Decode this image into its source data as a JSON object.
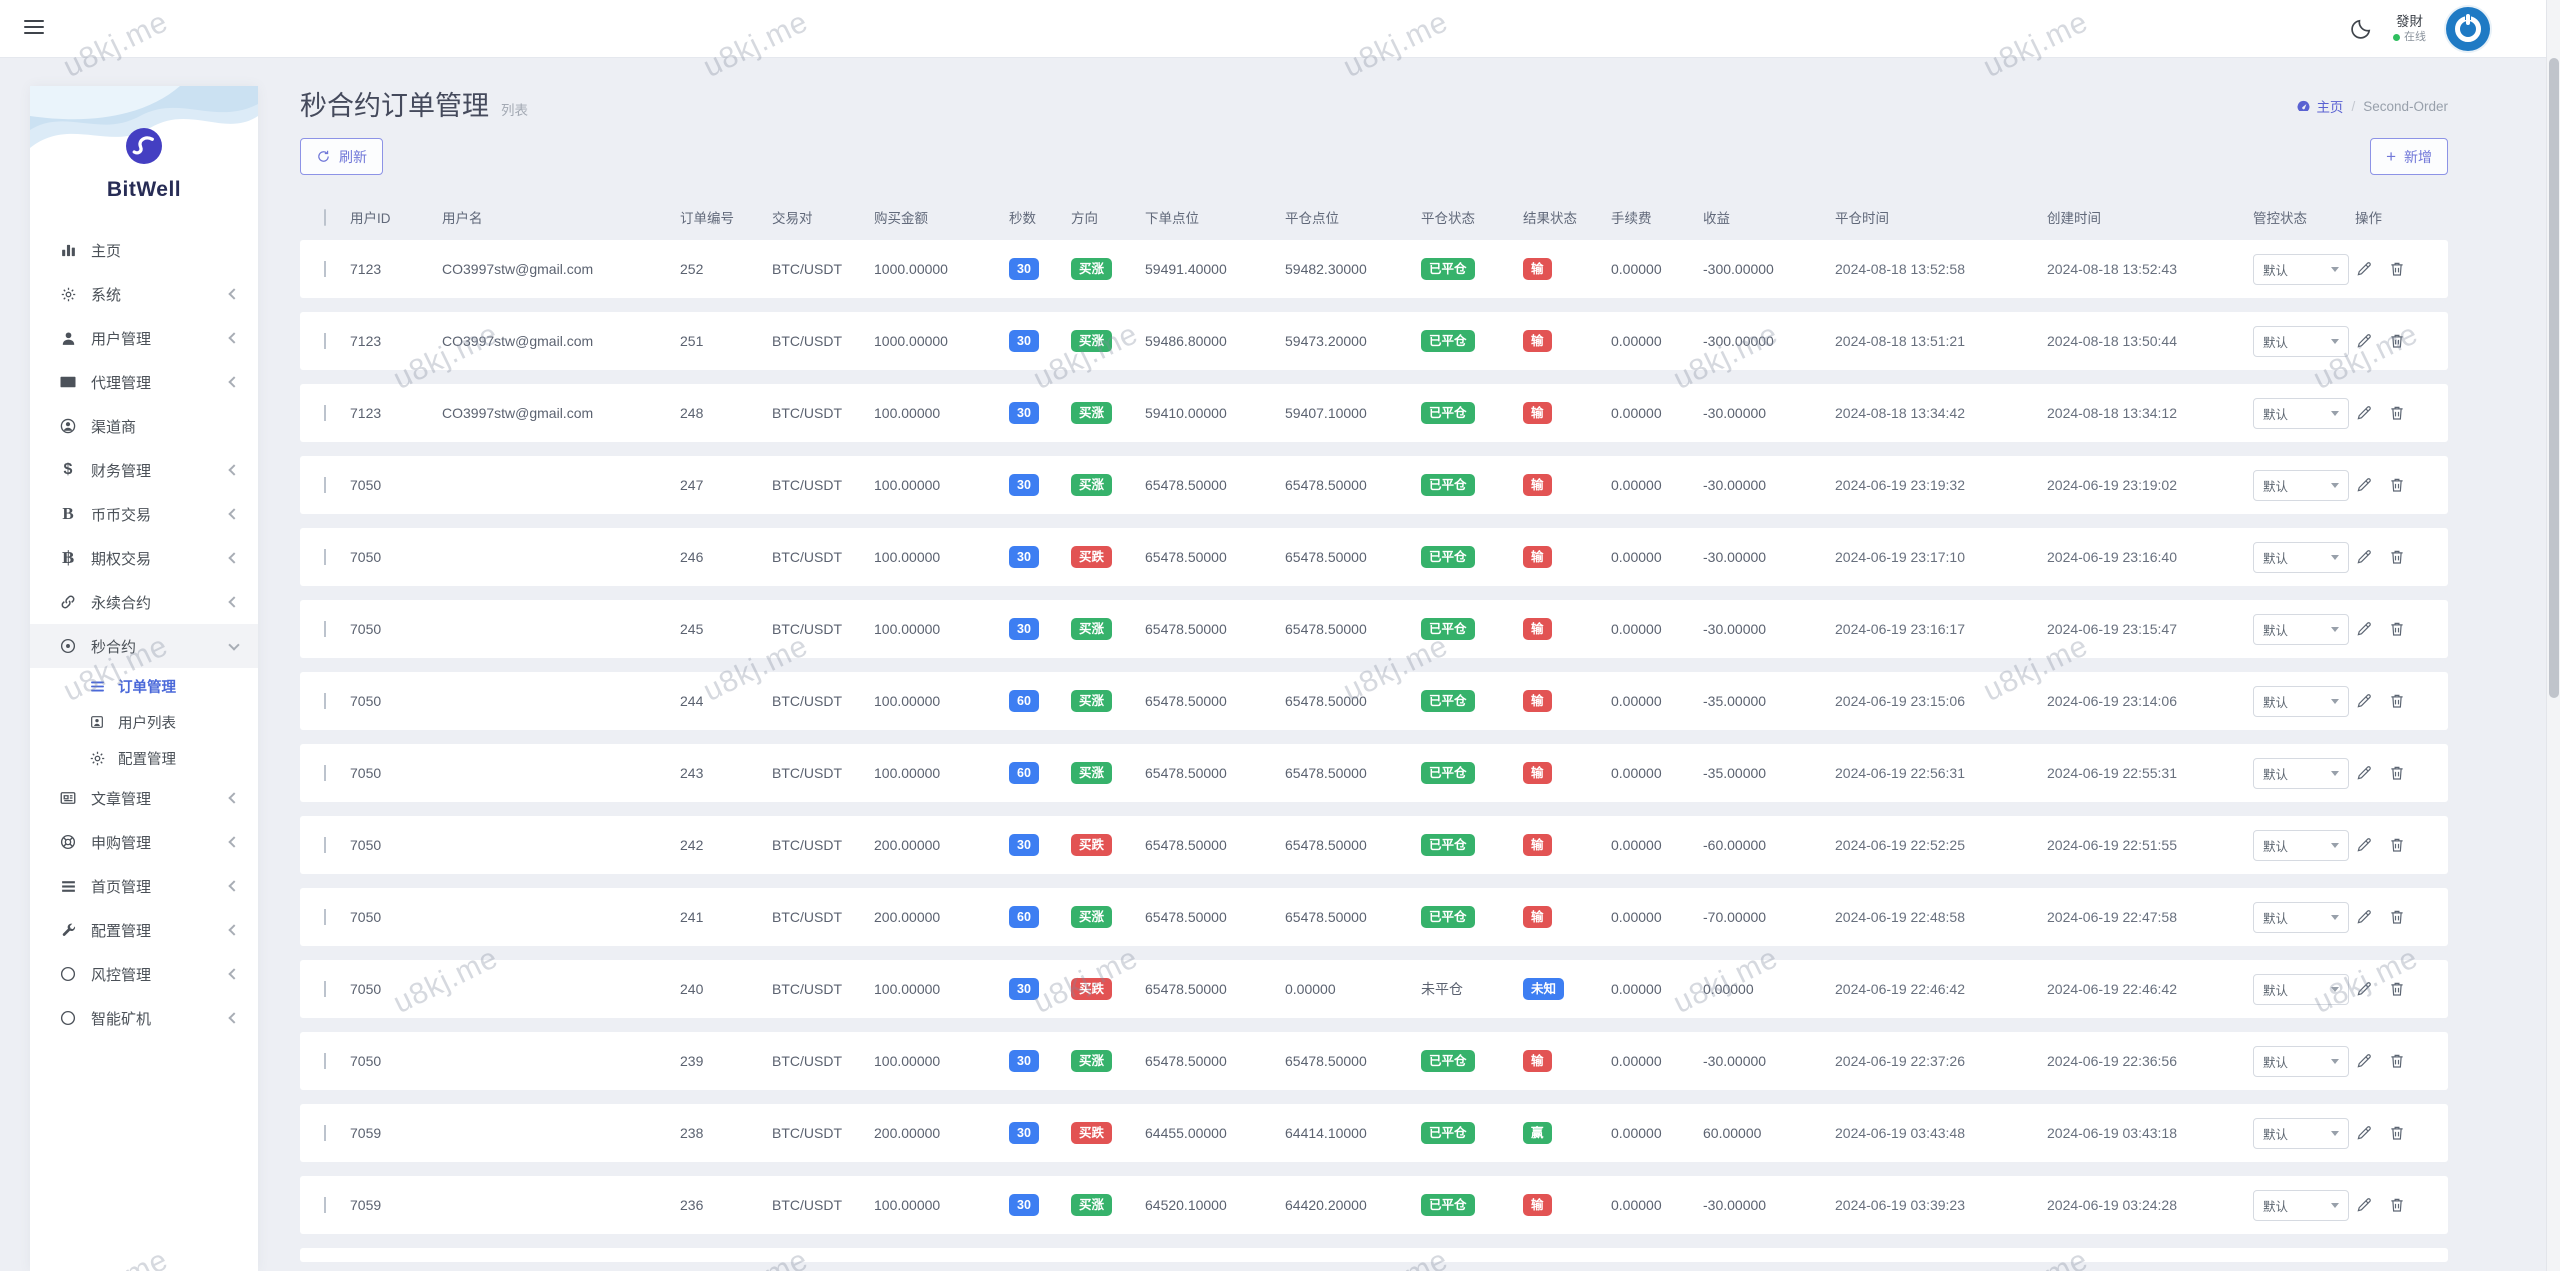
{
  "topbar": {
    "user": {
      "name": "發財",
      "status": "在线"
    }
  },
  "sidebar": {
    "brand": "BitWell",
    "menu": [
      {
        "name": "home",
        "label": "主页",
        "icon": "chart-bar"
      },
      {
        "name": "system",
        "label": "系统",
        "icon": "gear",
        "chevron": "left"
      },
      {
        "name": "users",
        "label": "用户管理",
        "icon": "user",
        "chevron": "left"
      },
      {
        "name": "agents",
        "label": "代理管理",
        "icon": "id-card",
        "chevron": "left"
      },
      {
        "name": "channel",
        "label": "渠道商",
        "icon": "user-circle"
      },
      {
        "name": "finance",
        "label": "财务管理",
        "icon": "dollar",
        "chevron": "left"
      },
      {
        "name": "spot-trade",
        "label": "币币交易",
        "icon": "letter-b",
        "chevron": "left"
      },
      {
        "name": "options",
        "label": "期权交易",
        "icon": "bitcoin",
        "chevron": "left"
      },
      {
        "name": "perpetual",
        "label": "永续合约",
        "icon": "link",
        "chevron": "left"
      },
      {
        "name": "seconds",
        "label": "秒合约",
        "icon": "target",
        "chevron": "down",
        "expanded": true,
        "children": [
          {
            "name": "order-manage",
            "label": "订单管理",
            "icon": "list",
            "active": true
          },
          {
            "name": "user-list",
            "label": "用户列表",
            "icon": "user-square"
          },
          {
            "name": "config",
            "label": "配置管理",
            "icon": "gear"
          }
        ]
      },
      {
        "name": "articles",
        "label": "文章管理",
        "icon": "newspaper",
        "chevron": "left"
      },
      {
        "name": "subscribe",
        "label": "申购管理",
        "icon": "lifebuoy",
        "chevron": "left"
      },
      {
        "name": "homepage",
        "label": "首页管理",
        "icon": "menu-lines",
        "chevron": "left"
      },
      {
        "name": "settings",
        "label": "配置管理",
        "icon": "wrench",
        "chevron": "left"
      },
      {
        "name": "risk",
        "label": "风控管理",
        "icon": "circle",
        "chevron": "left"
      },
      {
        "name": "miner",
        "label": "智能矿机",
        "icon": "circle",
        "chevron": "left"
      }
    ]
  },
  "page": {
    "title": "秒合约订单管理",
    "subtitle": "列表",
    "breadcrumb": {
      "home": "主页",
      "separator": "/",
      "current": "Second-Order"
    },
    "refresh_button": "刷新",
    "add_button": "新增"
  },
  "table": {
    "columns": [
      "用户ID",
      "用户名",
      "订单编号",
      "交易对",
      "购买金额",
      "秒数",
      "方向",
      "下单点位",
      "平仓点位",
      "平仓状态",
      "结果状态",
      "手续费",
      "收益",
      "平仓时间",
      "创建时间",
      "管控状态",
      "操作"
    ],
    "rows": [
      {
        "user_id": "7123",
        "username": "CO3997stw@gmail.com",
        "order_no": "252",
        "pair": "BTC/USDT",
        "amount": "1000.00000",
        "seconds": "30",
        "direction": "买涨",
        "direction_type": "up",
        "open_price": "59491.40000",
        "close_price": "59482.30000",
        "close_state": "已平仓",
        "close_state_type": "closed",
        "result": "输",
        "result_type": "lose",
        "fee": "0.00000",
        "profit": "-300.00000",
        "close_time": "2024-08-18 13:52:58",
        "create_time": "2024-08-18 13:52:43",
        "control": "默认"
      },
      {
        "user_id": "7123",
        "username": "CO3997stw@gmail.com",
        "order_no": "251",
        "pair": "BTC/USDT",
        "amount": "1000.00000",
        "seconds": "30",
        "direction": "买涨",
        "direction_type": "up",
        "open_price": "59486.80000",
        "close_price": "59473.20000",
        "close_state": "已平仓",
        "close_state_type": "closed",
        "result": "输",
        "result_type": "lose",
        "fee": "0.00000",
        "profit": "-300.00000",
        "close_time": "2024-08-18 13:51:21",
        "create_time": "2024-08-18 13:50:44",
        "control": "默认"
      },
      {
        "user_id": "7123",
        "username": "CO3997stw@gmail.com",
        "order_no": "248",
        "pair": "BTC/USDT",
        "amount": "100.00000",
        "seconds": "30",
        "direction": "买涨",
        "direction_type": "up",
        "open_price": "59410.00000",
        "close_price": "59407.10000",
        "close_state": "已平仓",
        "close_state_type": "closed",
        "result": "输",
        "result_type": "lose",
        "fee": "0.00000",
        "profit": "-30.00000",
        "close_time": "2024-08-18 13:34:42",
        "create_time": "2024-08-18 13:34:12",
        "control": "默认"
      },
      {
        "user_id": "7050",
        "username": "",
        "order_no": "247",
        "pair": "BTC/USDT",
        "amount": "100.00000",
        "seconds": "30",
        "direction": "买涨",
        "direction_type": "up",
        "open_price": "65478.50000",
        "close_price": "65478.50000",
        "close_state": "已平仓",
        "close_state_type": "closed",
        "result": "输",
        "result_type": "lose",
        "fee": "0.00000",
        "profit": "-30.00000",
        "close_time": "2024-06-19 23:19:32",
        "create_time": "2024-06-19 23:19:02",
        "control": "默认"
      },
      {
        "user_id": "7050",
        "username": "",
        "order_no": "246",
        "pair": "BTC/USDT",
        "amount": "100.00000",
        "seconds": "30",
        "direction": "买跌",
        "direction_type": "down",
        "open_price": "65478.50000",
        "close_price": "65478.50000",
        "close_state": "已平仓",
        "close_state_type": "closed",
        "result": "输",
        "result_type": "lose",
        "fee": "0.00000",
        "profit": "-30.00000",
        "close_time": "2024-06-19 23:17:10",
        "create_time": "2024-06-19 23:16:40",
        "control": "默认"
      },
      {
        "user_id": "7050",
        "username": "",
        "order_no": "245",
        "pair": "BTC/USDT",
        "amount": "100.00000",
        "seconds": "30",
        "direction": "买涨",
        "direction_type": "up",
        "open_price": "65478.50000",
        "close_price": "65478.50000",
        "close_state": "已平仓",
        "close_state_type": "closed",
        "result": "输",
        "result_type": "lose",
        "fee": "0.00000",
        "profit": "-30.00000",
        "close_time": "2024-06-19 23:16:17",
        "create_time": "2024-06-19 23:15:47",
        "control": "默认"
      },
      {
        "user_id": "7050",
        "username": "",
        "order_no": "244",
        "pair": "BTC/USDT",
        "amount": "100.00000",
        "seconds": "60",
        "direction": "买涨",
        "direction_type": "up",
        "open_price": "65478.50000",
        "close_price": "65478.50000",
        "close_state": "已平仓",
        "close_state_type": "closed",
        "result": "输",
        "result_type": "lose",
        "fee": "0.00000",
        "profit": "-35.00000",
        "close_time": "2024-06-19 23:15:06",
        "create_time": "2024-06-19 23:14:06",
        "control": "默认"
      },
      {
        "user_id": "7050",
        "username": "",
        "order_no": "243",
        "pair": "BTC/USDT",
        "amount": "100.00000",
        "seconds": "60",
        "direction": "买涨",
        "direction_type": "up",
        "open_price": "65478.50000",
        "close_price": "65478.50000",
        "close_state": "已平仓",
        "close_state_type": "closed",
        "result": "输",
        "result_type": "lose",
        "fee": "0.00000",
        "profit": "-35.00000",
        "close_time": "2024-06-19 22:56:31",
        "create_time": "2024-06-19 22:55:31",
        "control": "默认"
      },
      {
        "user_id": "7050",
        "username": "",
        "order_no": "242",
        "pair": "BTC/USDT",
        "amount": "200.00000",
        "seconds": "30",
        "direction": "买跌",
        "direction_type": "down",
        "open_price": "65478.50000",
        "close_price": "65478.50000",
        "close_state": "已平仓",
        "close_state_type": "closed",
        "result": "输",
        "result_type": "lose",
        "fee": "0.00000",
        "profit": "-60.00000",
        "close_time": "2024-06-19 22:52:25",
        "create_time": "2024-06-19 22:51:55",
        "control": "默认"
      },
      {
        "user_id": "7050",
        "username": "",
        "order_no": "241",
        "pair": "BTC/USDT",
        "amount": "200.00000",
        "seconds": "60",
        "direction": "买涨",
        "direction_type": "up",
        "open_price": "65478.50000",
        "close_price": "65478.50000",
        "close_state": "已平仓",
        "close_state_type": "closed",
        "result": "输",
        "result_type": "lose",
        "fee": "0.00000",
        "profit": "-70.00000",
        "close_time": "2024-06-19 22:48:58",
        "create_time": "2024-06-19 22:47:58",
        "control": "默认"
      },
      {
        "user_id": "7050",
        "username": "",
        "order_no": "240",
        "pair": "BTC/USDT",
        "amount": "100.00000",
        "seconds": "30",
        "direction": "买跌",
        "direction_type": "down",
        "open_price": "65478.50000",
        "close_price": "0.00000",
        "close_state": "未平仓",
        "close_state_type": "open",
        "result": "未知",
        "result_type": "unknown",
        "fee": "0.00000",
        "profit": "0.00000",
        "close_time": "2024-06-19 22:46:42",
        "create_time": "2024-06-19 22:46:42",
        "control": "默认"
      },
      {
        "user_id": "7050",
        "username": "",
        "order_no": "239",
        "pair": "BTC/USDT",
        "amount": "100.00000",
        "seconds": "30",
        "direction": "买涨",
        "direction_type": "up",
        "open_price": "65478.50000",
        "close_price": "65478.50000",
        "close_state": "已平仓",
        "close_state_type": "closed",
        "result": "输",
        "result_type": "lose",
        "fee": "0.00000",
        "profit": "-30.00000",
        "close_time": "2024-06-19 22:37:26",
        "create_time": "2024-06-19 22:36:56",
        "control": "默认"
      },
      {
        "user_id": "7059",
        "username": "",
        "order_no": "238",
        "pair": "BTC/USDT",
        "amount": "200.00000",
        "seconds": "30",
        "direction": "买跌",
        "direction_type": "down",
        "open_price": "64455.00000",
        "close_price": "64414.10000",
        "close_state": "已平仓",
        "close_state_type": "closed",
        "result": "赢",
        "result_type": "win",
        "fee": "0.00000",
        "profit": "60.00000",
        "close_time": "2024-06-19 03:43:48",
        "create_time": "2024-06-19 03:43:18",
        "control": "默认"
      },
      {
        "user_id": "7059",
        "username": "",
        "order_no": "236",
        "pair": "BTC/USDT",
        "amount": "100.00000",
        "seconds": "30",
        "direction": "买涨",
        "direction_type": "up",
        "open_price": "64520.10000",
        "close_price": "64420.20000",
        "close_state": "已平仓",
        "close_state_type": "closed",
        "result": "输",
        "result_type": "lose",
        "fee": "0.00000",
        "profit": "-30.00000",
        "close_time": "2024-06-19 03:39:23",
        "create_time": "2024-06-19 03:24:28",
        "control": "默认"
      }
    ]
  },
  "watermark": "u8kj.me",
  "colors": {
    "green": "#36b26b",
    "red": "#e25353",
    "blue": "#3d7ef2",
    "accent": "#5a62d2",
    "online": "#2fbf5f"
  }
}
